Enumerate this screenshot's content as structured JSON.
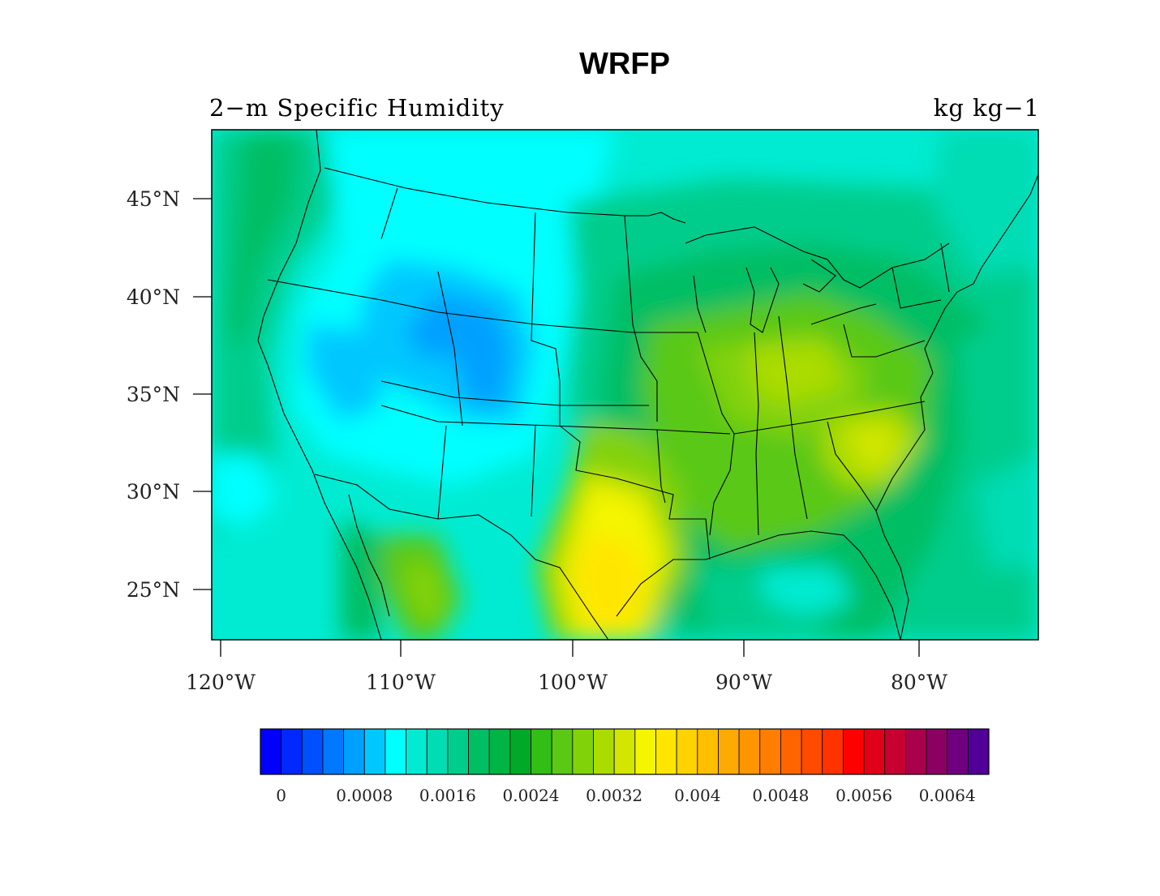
{
  "title": "WRFP",
  "subtitle_left": "2−m Specific Humidity",
  "subtitle_right": "kg kg−1",
  "map": {
    "lat_range": [
      22.5,
      48.5
    ],
    "lon_range": [
      -120.5,
      -73.5
    ],
    "lat_ticks": [
      "45°N",
      "40°N",
      "35°N",
      "30°N",
      "25°N"
    ],
    "lon_ticks": [
      "120°W",
      "110°W",
      "100°W",
      "90°W",
      "80°W"
    ]
  },
  "colorbar": {
    "colors": [
      "#0000ff",
      "#0028ff",
      "#0050ff",
      "#0078ff",
      "#00a0ff",
      "#00c8ff",
      "#00ffff",
      "#00ebd2",
      "#00dcb4",
      "#00cd8c",
      "#00be64",
      "#00b446",
      "#00aa28",
      "#32be14",
      "#5ac814",
      "#82d20a",
      "#aadc00",
      "#d2e600",
      "#f5f500",
      "#ffe600",
      "#ffd200",
      "#ffbe00",
      "#ffaa00",
      "#ff9600",
      "#ff7d00",
      "#ff6400",
      "#ff4b00",
      "#ff3200",
      "#ff0000",
      "#e10019",
      "#c80032",
      "#aa004b",
      "#8c0064",
      "#6e007d",
      "#500096"
    ],
    "labels": [
      "0",
      "0.0008",
      "0.0016",
      "0.0024",
      "0.0032",
      "0.004",
      "0.0048",
      "0.0056",
      "0.0064"
    ]
  }
}
